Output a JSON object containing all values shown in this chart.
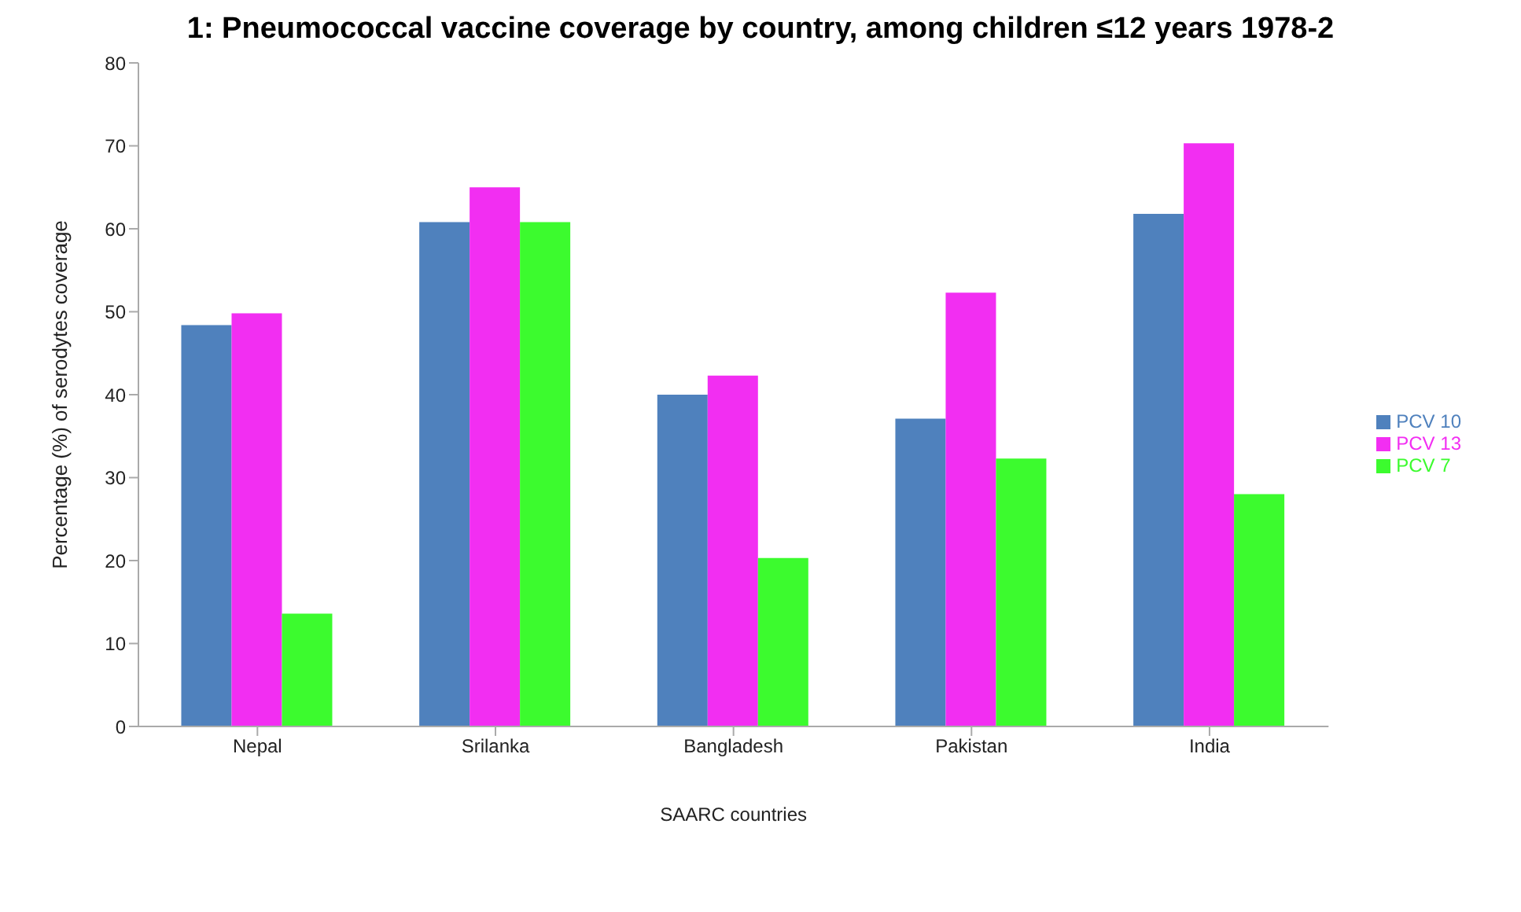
{
  "chart_data": {
    "type": "bar",
    "title": "1: Pneumococcal vaccine coverage by country, among children ≤12 years 1978-2",
    "xlabel": "SAARC countries",
    "ylabel": "Percentage (%) of serodytes coverage",
    "categories": [
      "Nepal",
      "Srilanka",
      "Bangladesh",
      "Pakistan",
      "India"
    ],
    "series": [
      {
        "name": "PCV 10",
        "color": "#4f81bd",
        "values": [
          48.4,
          60.8,
          40.0,
          37.1,
          61.8
        ]
      },
      {
        "name": "PCV 13",
        "color": "#f22ef2",
        "values": [
          49.8,
          65.0,
          42.3,
          52.3,
          70.3
        ]
      },
      {
        "name": "PCV 7",
        "color": "#3cfb2e",
        "values": [
          13.6,
          60.8,
          20.3,
          32.3,
          28.0
        ]
      }
    ],
    "ylim": [
      0,
      80
    ],
    "yticks": [
      0,
      10,
      20,
      30,
      40,
      50,
      60,
      70,
      80
    ],
    "grid": false,
    "legend": "right"
  }
}
